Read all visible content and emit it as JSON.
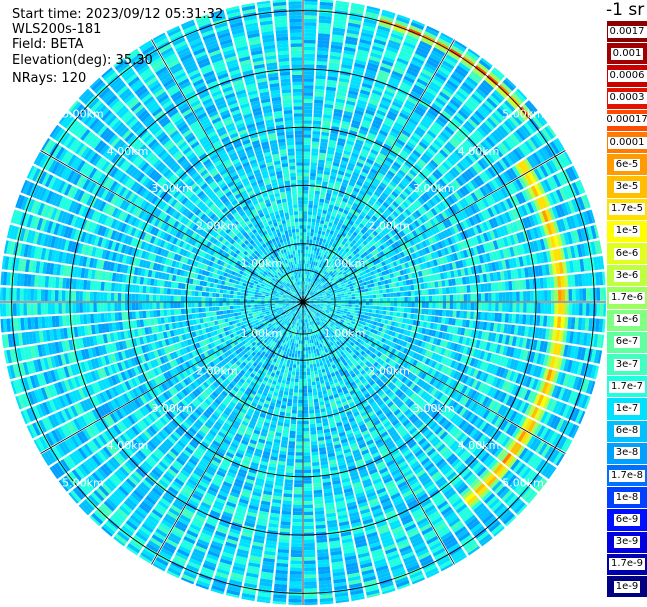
{
  "header": {
    "lines": [
      "Start time: 2023/09/12 05:31:32",
      "WLS200s-181",
      "Field: BETA",
      "Elevation(deg): 35.30",
      "NRays: 120"
    ]
  },
  "colorbar": {
    "unit": "-1 sr",
    "labels": [
      "0.0017",
      "0.001",
      "0.0006",
      "0.0003",
      "0.00017",
      "0.0001",
      "6e-5",
      "3e-5",
      "1.7e-5",
      "1e-5",
      "6e-6",
      "3e-6",
      "1.7e-6",
      "1e-6",
      "6e-7",
      "3e-7",
      "1.7e-7",
      "1e-7",
      "6e-8",
      "3e-8",
      "1.7e-8",
      "1e-8",
      "6e-9",
      "3e-9",
      "1.7e-9",
      "1e-9"
    ],
    "colors": [
      "#8b0000",
      "#a00000",
      "#c80000",
      "#e41000",
      "#ff4a00",
      "#ff7a00",
      "#ff9a00",
      "#ffbe00",
      "#ffe000",
      "#ffff00",
      "#e0ff20",
      "#c0ff40",
      "#9cff60",
      "#80ff80",
      "#60ffa0",
      "#40ffc0",
      "#20ffe0",
      "#00e0ff",
      "#00c0ff",
      "#00a0ff",
      "#0070ff",
      "#0040ff",
      "#0010ff",
      "#0000e0",
      "#0000b0",
      "#000080"
    ]
  },
  "chart_data": {
    "type": "heatmap",
    "projection": "polar-ppi",
    "field": "BETA",
    "nrays": 120,
    "max_range_km": 5.2,
    "range_rings_km": [
      1.0,
      2.0,
      3.0,
      4.0,
      5.0
    ],
    "ring_labels": [
      "1.00km",
      "2.00km",
      "3.00km",
      "4.00km",
      "5.00km"
    ],
    "spokes_every_deg": 30,
    "color_scale": "log",
    "value_range": [
      1e-09,
      0.0017
    ],
    "typical_value": 1e-07,
    "arc_features": [
      {
        "range_km": [
          4.25,
          4.55
        ],
        "azimuth_deg": [
          55,
          140
        ],
        "peak_value": 0.00017
      },
      {
        "range_km": [
          4.9,
          5.05
        ],
        "azimuth_deg": [
          15,
          50
        ],
        "peak_value": 0.0003
      }
    ]
  }
}
